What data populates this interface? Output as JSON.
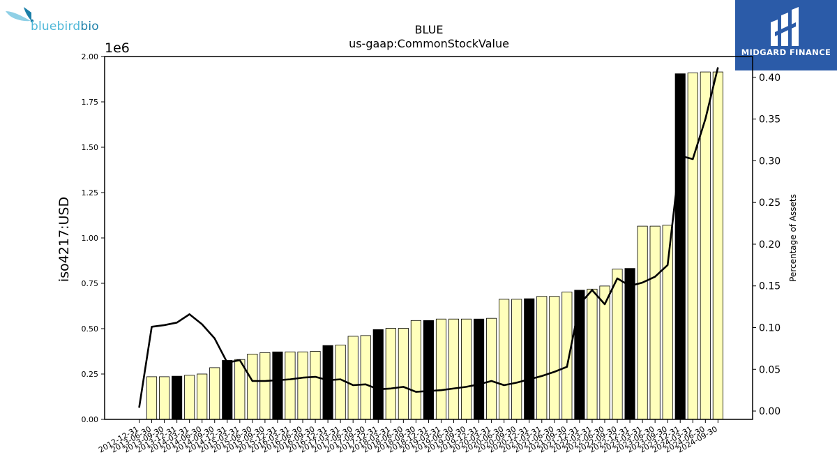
{
  "logos": {
    "left": {
      "brand_primary": "bluebird",
      "brand_secondary": "bio",
      "icon": "bird-icon"
    },
    "right": {
      "name": "MIDGARD FINANCE",
      "icon": "midgard-mark-icon",
      "background": "#2b5ba8"
    }
  },
  "chart_data": {
    "type": "bar",
    "title": "BLUE",
    "subtitle": "us-gaap:CommonStockValue",
    "ylabel": "iso4217:USD",
    "y2label": "Percentage of Assets",
    "y_offset_label": "1e6",
    "ylim": [
      0,
      2000000
    ],
    "y2lim": [
      -0.01,
      0.425
    ],
    "yticks": [
      "0.00",
      "0.25",
      "0.50",
      "0.75",
      "1.00",
      "1.25",
      "1.50",
      "1.75",
      "2.00"
    ],
    "y2ticks": [
      "0.00",
      "0.05",
      "0.10",
      "0.15",
      "0.20",
      "0.25",
      "0.30",
      "0.35",
      "0.40"
    ],
    "categories": [
      "2012-12-31",
      "2013-06-30",
      "2013-09-30",
      "2013-12-31",
      "2014-03-31",
      "2014-06-30",
      "2014-09-30",
      "2014-12-31",
      "2015-03-31",
      "2015-06-30",
      "2015-09-30",
      "2015-12-31",
      "2016-03-31",
      "2016-06-30",
      "2016-09-30",
      "2016-12-31",
      "2017-03-31",
      "2017-06-30",
      "2017-09-30",
      "2017-12-31",
      "2018-03-31",
      "2018-06-30",
      "2018-09-30",
      "2018-12-31",
      "2019-03-31",
      "2019-06-30",
      "2019-09-30",
      "2019-12-31",
      "2020-03-31",
      "2020-06-30",
      "2020-09-30",
      "2020-12-31",
      "2021-03-31",
      "2021-06-30",
      "2021-09-30",
      "2021-12-31",
      "2022-03-31",
      "2022-06-30",
      "2022-09-30",
      "2022-12-31",
      "2023-03-31",
      "2023-06-30",
      "2023-09-30",
      "2023-12-31",
      "2024-03-31",
      "2024-06-30",
      "2024-09-30"
    ],
    "series": [
      {
        "kind": "bar",
        "values": [
          0,
          235000,
          235000,
          238000,
          243000,
          250000,
          285000,
          325000,
          330000,
          360000,
          368000,
          372000,
          372000,
          372000,
          375000,
          407000,
          410000,
          458000,
          462000,
          495000,
          502000,
          502000,
          545000,
          545000,
          553000,
          553000,
          553000,
          553000,
          557000,
          662000,
          662000,
          665000,
          678000,
          678000,
          702000,
          712000,
          718000,
          735000,
          828000,
          832000,
          1065000,
          1065000,
          1070000,
          1905000,
          1910000,
          1915000,
          1915000
        ],
        "highlight": [
          false,
          false,
          false,
          true,
          false,
          false,
          false,
          true,
          false,
          false,
          false,
          true,
          false,
          false,
          false,
          true,
          false,
          false,
          false,
          true,
          false,
          false,
          false,
          true,
          false,
          false,
          false,
          true,
          false,
          false,
          false,
          true,
          false,
          false,
          false,
          true,
          false,
          false,
          false,
          true,
          false,
          false,
          false,
          true,
          false,
          false,
          false
        ],
        "color": "#ffffbb",
        "highlight_color": "#000000"
      },
      {
        "kind": "line",
        "axis": "right",
        "values": [
          0.004,
          0.101,
          0.103,
          0.106,
          0.116,
          0.104,
          0.087,
          0.058,
          0.061,
          0.036,
          0.036,
          0.037,
          0.038,
          0.04,
          0.041,
          0.037,
          0.038,
          0.031,
          0.032,
          0.026,
          0.027,
          0.029,
          0.023,
          0.024,
          0.025,
          0.027,
          0.029,
          0.032,
          0.036,
          0.031,
          0.034,
          0.038,
          0.042,
          0.047,
          0.053,
          0.128,
          0.145,
          0.128,
          0.159,
          0.15,
          0.154,
          0.161,
          0.175,
          0.306,
          0.302,
          0.35,
          0.412
        ],
        "color": "#000000"
      }
    ]
  }
}
